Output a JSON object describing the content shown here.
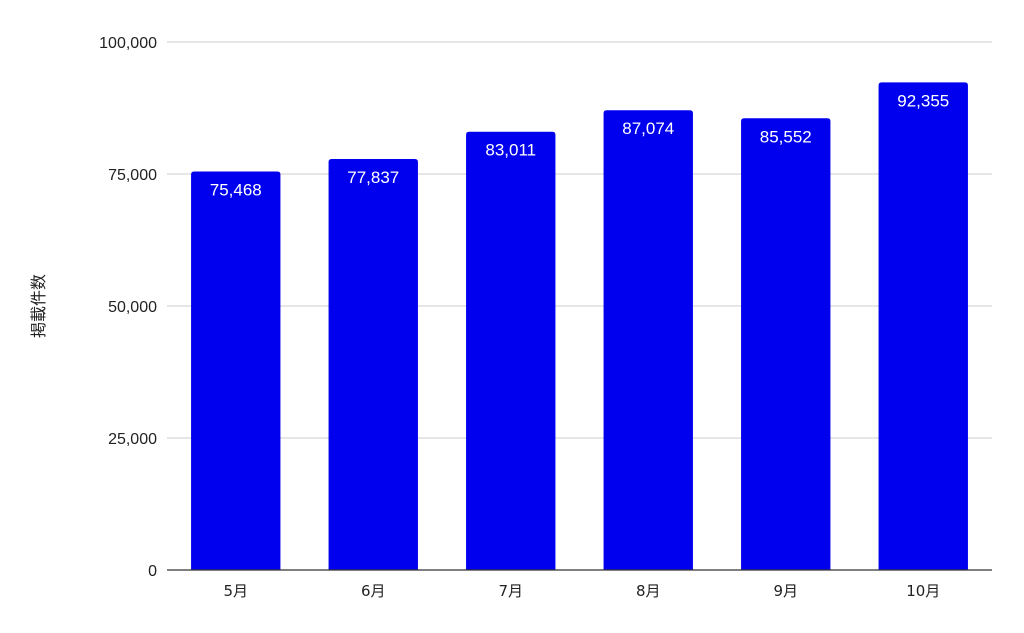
{
  "colors": {
    "bar": "#0000ee",
    "grid": "#cccccc",
    "axis": "#333333",
    "text": "#222222",
    "data_label": "#ffffff"
  },
  "chart_data": {
    "type": "bar",
    "title": "",
    "xlabel": "",
    "ylabel": "掲載件数",
    "categories": [
      "5月",
      "6月",
      "7月",
      "8月",
      "9月",
      "10月"
    ],
    "series": [
      {
        "values": [
          75468,
          77837,
          83011,
          87074,
          85552,
          92355
        ],
        "data_labels": [
          "75,468",
          "77,837",
          "83,011",
          "87,074",
          "85,552",
          "92,355"
        ]
      }
    ],
    "ylim": [
      0,
      100000
    ],
    "yticks": [
      0,
      25000,
      50000,
      75000,
      100000
    ],
    "ytick_labels": [
      "0",
      "25,000",
      "50,000",
      "75,000",
      "100,000"
    ],
    "grid": true,
    "legend": "none"
  }
}
